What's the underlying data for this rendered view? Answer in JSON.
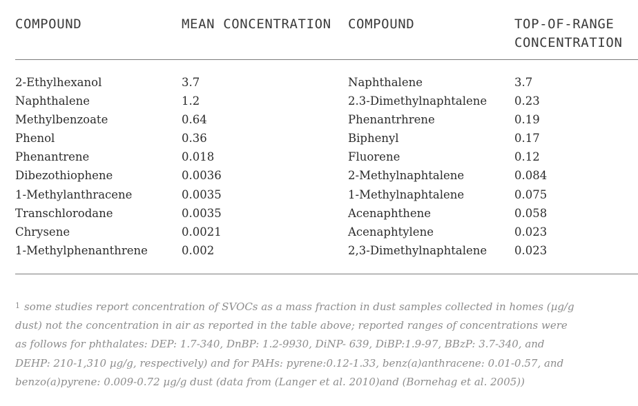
{
  "table": {
    "headers": {
      "col1": "COMPOUND",
      "col2": "MEAN CONCENTRATION",
      "col3": "COMPOUND",
      "col4": "TOP-OF-RANGE\nCONCENTRATION"
    },
    "rows": [
      {
        "compound_a": "2-Ethylhexanol",
        "mean": "3.7",
        "compound_b": "Naphthalene",
        "top": "3.7"
      },
      {
        "compound_a": "Naphthalene",
        "mean": "1.2",
        "compound_b": "2.3-Dimethylnaphtalene",
        "top": "0.23"
      },
      {
        "compound_a": "Methylbenzoate",
        "mean": "0.64",
        "compound_b": "Phenantrhrene",
        "top": "0.19"
      },
      {
        "compound_a": "Phenol",
        "mean": "0.36",
        "compound_b": "Biphenyl",
        "top": "0.17"
      },
      {
        "compound_a": "Phenantrene",
        "mean": "0.018",
        "compound_b": "Fluorene",
        "top": "0.12"
      },
      {
        "compound_a": "Dibezothiophene",
        "mean": "0.0036",
        "compound_b": "2-Methylnaphtalene",
        "top": "0.084"
      },
      {
        "compound_a": "1-Methylanthracene",
        "mean": "0.0035",
        "compound_b": "1-Methylnaphtalene",
        "top": "0.075"
      },
      {
        "compound_a": "Transchlorodane",
        "mean": "0.0035",
        "compound_b": "Acenaphthene",
        "top": "0.058"
      },
      {
        "compound_a": "Chrysene",
        "mean": "0.0021",
        "compound_b": "Acenaphtylene",
        "top": "0.023"
      },
      {
        "compound_a": "1-Methylphenanthrene",
        "mean": "0.002",
        "compound_b": "2,3-Dimethylnaphtalene",
        "top": "0.023"
      }
    ]
  },
  "footnote": {
    "marker": "1",
    "lines": [
      "some studies report concentration of SVOCs as a mass fraction in dust samples collected in homes (µg/g",
      "dust) not the concentration in air as reported in the table above;  reported ranges of concentrations were",
      "as follows for phthalates: DEP: 1.7-340, DnBP: 1.2-9930, DiNP- 639, DiBP:1.9-97, BBzP: 3.7-340, and",
      "DEHP: 210-1,310 µg/g, respectively) and for PAHs: pyrene:0.12-1.33, benz(a)anthracene: 0.01-0.57, and",
      "benzo(a)pyrene: 0.009-0.72 µg/g dust (data from (Langer et al. 2010)and (Bornehag et al. 2005))"
    ]
  }
}
